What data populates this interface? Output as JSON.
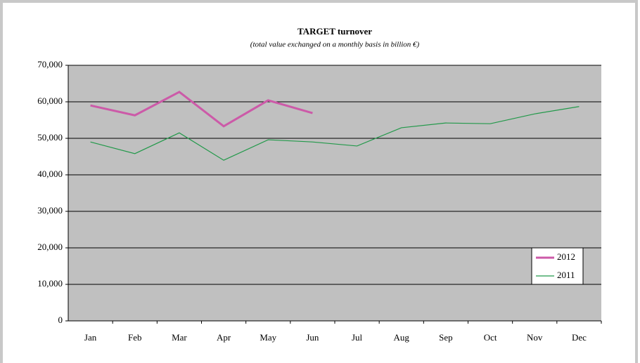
{
  "chart_data": {
    "type": "line",
    "title": "TARGET turnover",
    "subtitle": "(total value exchanged on a monthly basis in billion €)",
    "categories": [
      "Jan",
      "Feb",
      "Mar",
      "Apr",
      "May",
      "Jun",
      "Jul",
      "Aug",
      "Sep",
      "Oct",
      "Nov",
      "Dec"
    ],
    "series": [
      {
        "name": "2012",
        "color": "#cc5aa8",
        "values": [
          59000,
          56300,
          62700,
          53300,
          60400,
          56900,
          null,
          null,
          null,
          null,
          null,
          null
        ]
      },
      {
        "name": "2011",
        "color": "#22994a",
        "values": [
          49000,
          45800,
          51500,
          44000,
          49600,
          49000,
          47900,
          52900,
          54200,
          54000,
          56700,
          58700
        ]
      }
    ],
    "ylim": [
      0,
      70000
    ],
    "yticks": [
      0,
      {
        "value": 10000,
        "label": "10,000"
      },
      {
        "value": 20000,
        "label": "20,000"
      },
      {
        "value": 30000,
        "label": "30,000"
      },
      {
        "value": 40000,
        "label": "40,000"
      },
      {
        "value": 50000,
        "label": "50,000"
      },
      {
        "value": 60000,
        "label": "60,000"
      },
      {
        "value": 70000,
        "label": "70,000"
      }
    ],
    "grid": true,
    "legend": "lower-right"
  }
}
